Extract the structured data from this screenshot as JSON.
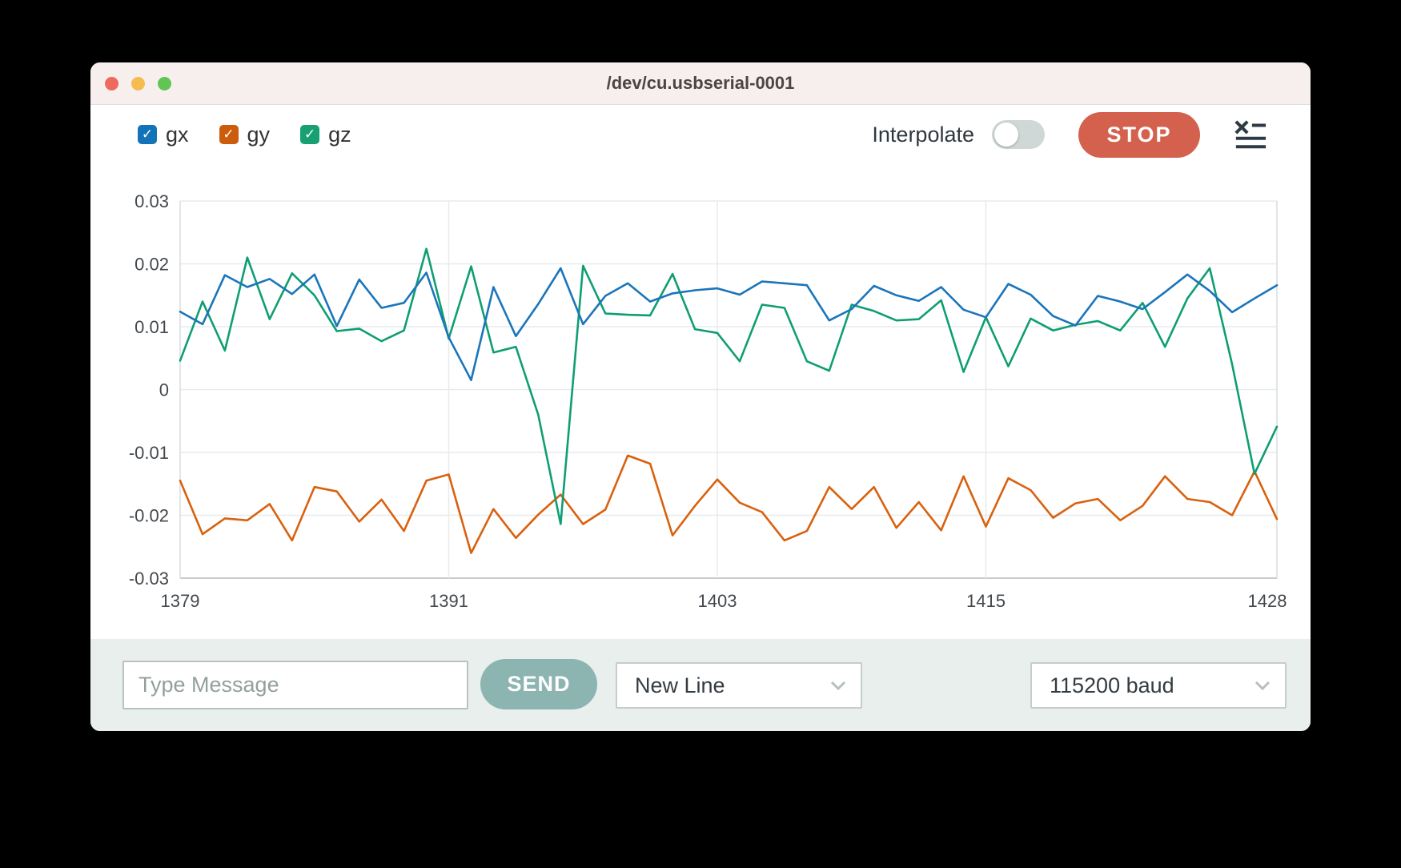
{
  "window": {
    "title": "/dev/cu.usbserial-0001"
  },
  "titlebar_colors": {
    "close": "#ee6a5f",
    "minimize": "#f5bd4f",
    "zoom": "#61c554"
  },
  "legend_toggles": [
    {
      "label": "gx",
      "color": "#1a75bb",
      "checked": true,
      "checkmark": "✓"
    },
    {
      "label": "gy",
      "color": "#d05e0d",
      "checked": true,
      "checkmark": "✓"
    },
    {
      "label": "gz",
      "color": "#12a074",
      "checked": true,
      "checkmark": "✓"
    }
  ],
  "controls": {
    "interpolate_label": "Interpolate",
    "interpolate_on": false,
    "stop_label": "STOP",
    "clear_icon_name": "clear-list-icon"
  },
  "accent_colors": {
    "stop_button": "#d4604e",
    "send_button": "#8cb4b0",
    "toggle_track": "#cfd8d7"
  },
  "chart_data": {
    "type": "line",
    "title": "",
    "xlabel": "",
    "ylabel": "",
    "xlim": [
      1379,
      1428
    ],
    "ylim": [
      -0.03,
      0.03
    ],
    "grid": true,
    "legend_position": "top-left checkboxes",
    "x_start": 1379,
    "x_step": 1,
    "x_ticks": [
      {
        "v": 1379,
        "label": "1379"
      },
      {
        "v": 1391,
        "label": "1391"
      },
      {
        "v": 1403,
        "label": "1403"
      },
      {
        "v": 1415,
        "label": "1415"
      },
      {
        "v": 1428,
        "label": "1428"
      }
    ],
    "y_ticks": [
      {
        "v": 0.03,
        "label": "0.03"
      },
      {
        "v": 0.02,
        "label": "0.02"
      },
      {
        "v": 0.01,
        "label": "0.01"
      },
      {
        "v": 0,
        "label": "0"
      },
      {
        "v": -0.01,
        "label": "-0.01"
      },
      {
        "v": -0.02,
        "label": "-0.02"
      },
      {
        "v": -0.03,
        "label": "-0.03"
      }
    ],
    "series": [
      {
        "name": "gx",
        "color": "#1a75bb",
        "values": [
          0.0124,
          0.0104,
          0.0182,
          0.0163,
          0.0176,
          0.0152,
          0.0183,
          0.0101,
          0.0175,
          0.013,
          0.0138,
          0.0186,
          0.0083,
          0.0015,
          0.0163,
          0.0085,
          0.0136,
          0.0193,
          0.0104,
          0.0149,
          0.0169,
          0.014,
          0.0153,
          0.0158,
          0.0161,
          0.0151,
          0.0172,
          0.0169,
          0.0166,
          0.011,
          0.0128,
          0.0165,
          0.015,
          0.0141,
          0.0163,
          0.0127,
          0.0115,
          0.0168,
          0.0151,
          0.0117,
          0.0102,
          0.0149,
          0.014,
          0.0128,
          0.0155,
          0.0183,
          0.0157,
          0.0123,
          0.0145,
          0.0166
        ]
      },
      {
        "name": "gy",
        "color": "#d9610f",
        "values": [
          -0.0145,
          -0.023,
          -0.0205,
          -0.0208,
          -0.0182,
          -0.024,
          -0.0155,
          -0.0162,
          -0.021,
          -0.0175,
          -0.0225,
          -0.0145,
          -0.0135,
          -0.026,
          -0.019,
          -0.0236,
          -0.0199,
          -0.0167,
          -0.0214,
          -0.0191,
          -0.0105,
          -0.0118,
          -0.0232,
          -0.0185,
          -0.0143,
          -0.018,
          -0.0195,
          -0.024,
          -0.0225,
          -0.0155,
          -0.019,
          -0.0155,
          -0.022,
          -0.0179,
          -0.0224,
          -0.0138,
          -0.0218,
          -0.0141,
          -0.016,
          -0.0204,
          -0.0181,
          -0.0174,
          -0.0208,
          -0.0185,
          -0.0138,
          -0.0174,
          -0.0179,
          -0.02,
          -0.013,
          -0.0206
        ]
      },
      {
        "name": "gz",
        "color": "#0f9e74",
        "values": [
          0.0046,
          0.014,
          0.0062,
          0.021,
          0.0112,
          0.0185,
          0.015,
          0.0093,
          0.0097,
          0.0077,
          0.0094,
          0.0224,
          0.0081,
          0.0196,
          0.0059,
          0.0068,
          -0.004,
          -0.0214,
          0.0197,
          0.0121,
          0.0119,
          0.0118,
          0.0184,
          0.0096,
          0.009,
          0.0045,
          0.0135,
          0.013,
          0.0045,
          0.003,
          0.0135,
          0.0125,
          0.011,
          0.0112,
          0.0142,
          0.0028,
          0.0115,
          0.0037,
          0.0113,
          0.0094,
          0.0103,
          0.0109,
          0.0094,
          0.0138,
          0.0068,
          0.0145,
          0.0193,
          0.004,
          -0.0134,
          -0.0059
        ]
      }
    ]
  },
  "bottom_bar": {
    "message_placeholder": "Type Message",
    "message_value": "",
    "send_label": "SEND",
    "line_ending_selected": "New Line",
    "baud_selected": "115200 baud"
  }
}
